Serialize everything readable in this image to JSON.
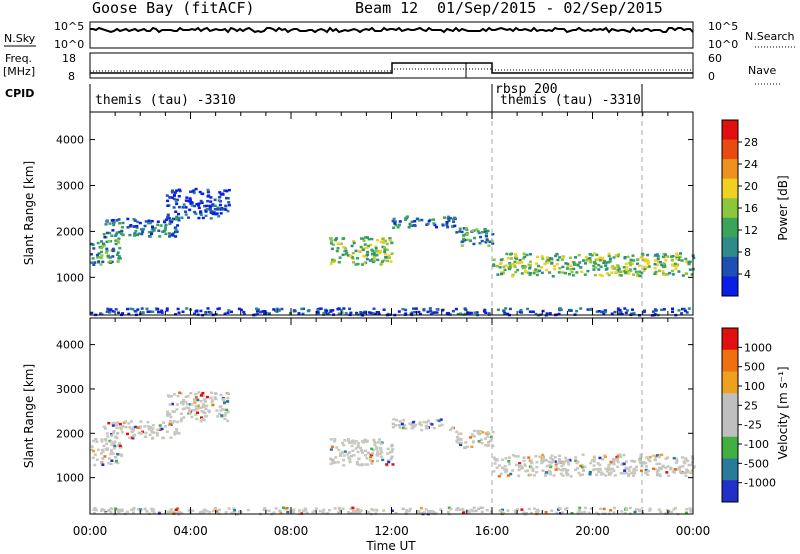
{
  "header": {
    "station": "Goose Bay (fitACF)",
    "beam": "Beam 12",
    "date_range": "01/Sep/2015 - 02/Sep/2015"
  },
  "noise_panel": {
    "left_label": "N.Sky",
    "right_label": "N.Search",
    "left_ticks": [
      "10^5",
      "10^0"
    ],
    "right_ticks": [
      "10^5",
      "10^0"
    ]
  },
  "freq_panel": {
    "left_label_line1": "Freq.",
    "left_label_line2": "[MHz]",
    "left_ticks": [
      "18",
      "8"
    ],
    "right_label": "Nave",
    "right_ticks": [
      "60",
      "0"
    ]
  },
  "cpid": {
    "label": "CPID",
    "segments": [
      {
        "name": "themis (tau) -3310",
        "start_h": 0,
        "end_h": 16
      },
      {
        "name": "rbsp 200",
        "start_h": 16,
        "end_h": 22
      },
      {
        "name": "themis (tau) -3310",
        "start_h": 16,
        "end_h": 22
      }
    ]
  },
  "power_panel": {
    "ylabel": "Slant Range [km]",
    "yticks": [
      "4000",
      "3000",
      "2000",
      "1000"
    ],
    "colorbar_label": "Power [dB]",
    "colorbar_ticks": [
      "28",
      "24",
      "20",
      "16",
      "12",
      "8",
      "4"
    ]
  },
  "velocity_panel": {
    "ylabel": "Slant Range [km]",
    "yticks": [
      "4000",
      "3000",
      "2000",
      "1000"
    ],
    "colorbar_label": "Velocity [m s⁻¹]",
    "colorbar_ticks": [
      "1000",
      "500",
      "100",
      "25",
      "-25",
      "-100",
      "-500",
      "-1000"
    ]
  },
  "x_axis": {
    "label": "Time UT",
    "ticks": [
      "00:00",
      "04:00",
      "08:00",
      "12:00",
      "16:00",
      "20:00",
      "00:00"
    ]
  },
  "chart_data": {
    "type": "heatmap",
    "x_range_hours": [
      0,
      24
    ],
    "y_range_km": [
      180,
      4600
    ],
    "power_colors": [
      "#0a1ee6",
      "#1f4fb4",
      "#2f8a8a",
      "#3aa45a",
      "#8cc63c",
      "#f0d020",
      "#f09020",
      "#e84a10",
      "#e01010"
    ],
    "velocity_colors": [
      "#2030c8",
      "#2a7a9c",
      "#40b040",
      "#bfbfbf",
      "#bfbfbf",
      "#f0a020",
      "#f07010",
      "#e01010"
    ],
    "ground_scatter_color": "#c8c8c0",
    "echo_regions": [
      {
        "start_h": 0.0,
        "end_h": 1.2,
        "range_km": [
          1300,
          1900
        ],
        "power_db": 14
      },
      {
        "start_h": 0.5,
        "end_h": 3.5,
        "range_km": [
          1900,
          2300
        ],
        "power_db": 10
      },
      {
        "start_h": 3.0,
        "end_h": 5.5,
        "range_km": [
          2300,
          2950
        ],
        "power_db": 9
      },
      {
        "start_h": 9.5,
        "end_h": 12.0,
        "range_km": [
          1300,
          1900
        ],
        "power_db": 20
      },
      {
        "start_h": 12.0,
        "end_h": 14.5,
        "range_km": [
          2100,
          2350
        ],
        "power_db": 12
      },
      {
        "start_h": 14.5,
        "end_h": 16.0,
        "range_km": [
          1700,
          2100
        ],
        "power_db": 14
      },
      {
        "start_h": 16.0,
        "end_h": 24.0,
        "range_km": [
          1050,
          1550
        ],
        "power_db": 18
      },
      {
        "start_h": 0.0,
        "end_h": 24.0,
        "range_km": [
          200,
          350
        ],
        "power_db": 8
      }
    ]
  }
}
